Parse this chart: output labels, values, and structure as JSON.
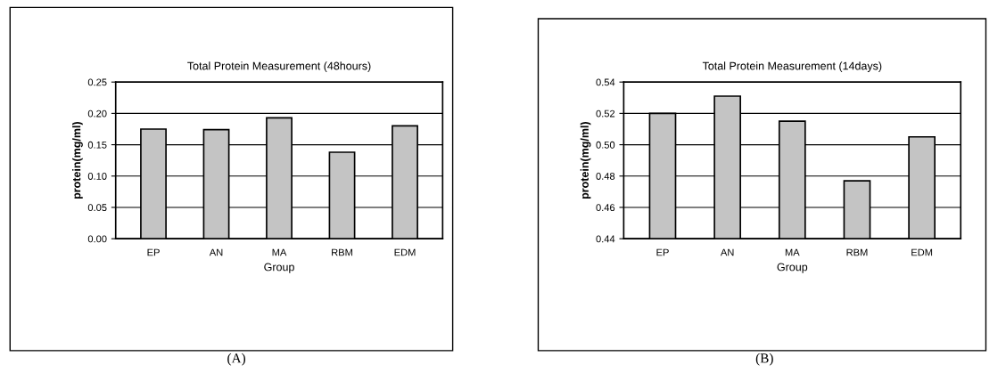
{
  "chart_data": [
    {
      "type": "bar",
      "title": "Total Protein Measurement (48hours)",
      "xlabel": "Group",
      "ylabel": "protein(mg/ml)",
      "categories": [
        "EP",
        "AN",
        "MA",
        "RBM",
        "EDM"
      ],
      "values": [
        0.175,
        0.174,
        0.193,
        0.138,
        0.18
      ],
      "color": "#c4c4c4",
      "ylim": [
        0,
        0.25
      ],
      "yticks": [
        {
          "value": 0,
          "label": "0.00"
        },
        {
          "value": 0.05,
          "label": "0.05"
        },
        {
          "value": 0.1,
          "label": "0.10"
        },
        {
          "value": 0.15,
          "label": "0.15"
        },
        {
          "value": 0.2,
          "label": "0.20"
        },
        {
          "value": 0.25,
          "label": "0.25"
        }
      ],
      "grid": "y",
      "annotations": [
        "(A)"
      ]
    },
    {
      "type": "bar",
      "title": "Total Protein Measurement (14days)",
      "xlabel": "Group",
      "ylabel": "protein(mg/ml)",
      "categories": [
        "EP",
        "AN",
        "MA",
        "RBM",
        "EDM"
      ],
      "values": [
        0.52,
        0.531,
        0.515,
        0.477,
        0.505
      ],
      "color": "#c4c4c4",
      "ylim": [
        0.44,
        0.54
      ],
      "yticks": [
        {
          "value": 0.44,
          "label": "0.44"
        },
        {
          "value": 0.46,
          "label": "0.46"
        },
        {
          "value": 0.48,
          "label": "0.48"
        },
        {
          "value": 0.5,
          "label": "0.50"
        },
        {
          "value": 0.52,
          "label": "0.52"
        },
        {
          "value": 0.54,
          "label": "0.54"
        }
      ],
      "grid": "y",
      "annotations": [
        "(B)"
      ]
    }
  ]
}
